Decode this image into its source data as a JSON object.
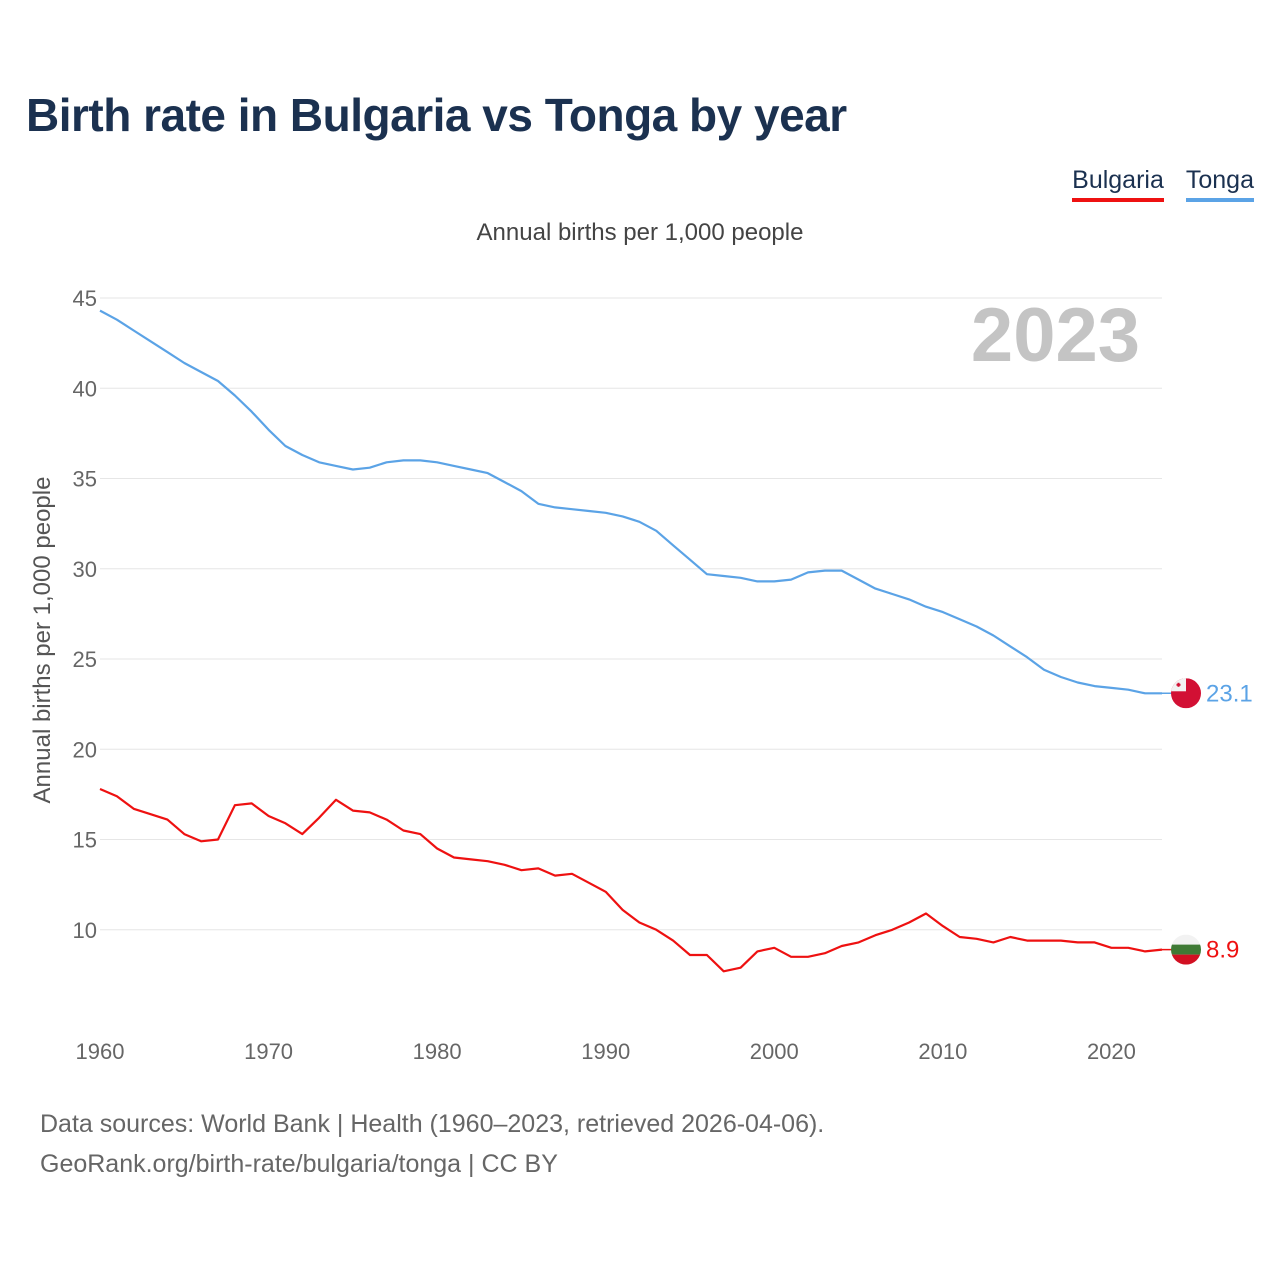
{
  "title": "Birth rate in Bulgaria vs Tonga by year",
  "legend": [
    {
      "label": "Bulgaria",
      "color": "#ee1111"
    },
    {
      "label": "Tonga",
      "color": "#5ba3e6"
    }
  ],
  "chart_data": {
    "type": "line",
    "subtitle": "Annual births per 1,000 people",
    "ylabel": "Annual births per 1,000 people",
    "xlabel": "",
    "year_label": "2023",
    "xlim": [
      1960,
      2023
    ],
    "ylim": [
      5,
      45
    ],
    "y_ticks": [
      10,
      15,
      20,
      25,
      30,
      35,
      40,
      45
    ],
    "x_ticks": [
      1960,
      1970,
      1980,
      1990,
      2000,
      2010,
      2020
    ],
    "grid": true,
    "series": [
      {
        "name": "Bulgaria",
        "color": "#ee1111",
        "end_label": "8.9",
        "x": [
          1960,
          1961,
          1962,
          1963,
          1964,
          1965,
          1966,
          1967,
          1968,
          1969,
          1970,
          1971,
          1972,
          1973,
          1974,
          1975,
          1976,
          1977,
          1978,
          1979,
          1980,
          1981,
          1982,
          1983,
          1984,
          1985,
          1986,
          1987,
          1988,
          1989,
          1990,
          1991,
          1992,
          1993,
          1994,
          1995,
          1996,
          1997,
          1998,
          1999,
          2000,
          2001,
          2002,
          2003,
          2004,
          2005,
          2006,
          2007,
          2008,
          2009,
          2010,
          2011,
          2012,
          2013,
          2014,
          2015,
          2016,
          2017,
          2018,
          2019,
          2020,
          2021,
          2022,
          2023
        ],
        "values": [
          17.8,
          17.4,
          16.7,
          16.4,
          16.1,
          15.3,
          14.9,
          15.0,
          16.9,
          17.0,
          16.3,
          15.9,
          15.3,
          16.2,
          17.2,
          16.6,
          16.5,
          16.1,
          15.5,
          15.3,
          14.5,
          14.0,
          13.9,
          13.8,
          13.6,
          13.3,
          13.4,
          13.0,
          13.1,
          12.6,
          12.1,
          11.1,
          10.4,
          10.0,
          9.4,
          8.6,
          8.6,
          7.7,
          7.9,
          8.8,
          9.0,
          8.5,
          8.5,
          8.7,
          9.1,
          9.3,
          9.7,
          10.0,
          10.4,
          10.9,
          10.2,
          9.6,
          9.5,
          9.3,
          9.6,
          9.4,
          9.4,
          9.4,
          9.3,
          9.3,
          9.0,
          9.0,
          8.8,
          8.9
        ]
      },
      {
        "name": "Tonga",
        "color": "#5ba3e6",
        "end_label": "23.1",
        "x": [
          1960,
          1961,
          1962,
          1963,
          1964,
          1965,
          1966,
          1967,
          1968,
          1969,
          1970,
          1971,
          1972,
          1973,
          1974,
          1975,
          1976,
          1977,
          1978,
          1979,
          1980,
          1981,
          1982,
          1983,
          1984,
          1985,
          1986,
          1987,
          1988,
          1989,
          1990,
          1991,
          1992,
          1993,
          1994,
          1995,
          1996,
          1997,
          1998,
          1999,
          2000,
          2001,
          2002,
          2003,
          2004,
          2005,
          2006,
          2007,
          2008,
          2009,
          2010,
          2011,
          2012,
          2013,
          2014,
          2015,
          2016,
          2017,
          2018,
          2019,
          2020,
          2021,
          2022,
          2023
        ],
        "values": [
          44.3,
          43.8,
          43.2,
          42.6,
          42.0,
          41.4,
          40.9,
          40.4,
          39.6,
          38.7,
          37.7,
          36.8,
          36.3,
          35.9,
          35.7,
          35.5,
          35.6,
          35.9,
          36.0,
          36.0,
          35.9,
          35.7,
          35.5,
          35.3,
          34.8,
          34.3,
          33.6,
          33.4,
          33.3,
          33.2,
          33.1,
          32.9,
          32.6,
          32.1,
          31.3,
          30.5,
          29.7,
          29.6,
          29.5,
          29.3,
          29.3,
          29.4,
          29.8,
          29.9,
          29.9,
          29.4,
          28.9,
          28.6,
          28.3,
          27.9,
          27.6,
          27.2,
          26.8,
          26.3,
          25.7,
          25.1,
          24.4,
          24.0,
          23.7,
          23.5,
          23.4,
          23.3,
          23.1,
          23.1
        ]
      }
    ]
  },
  "footer": {
    "line1": "Data sources: World Bank | Health (1960–2023, retrieved 2026-04-06).",
    "line2": "GeoRank.org/birth-rate/bulgaria/tonga | CC BY"
  }
}
